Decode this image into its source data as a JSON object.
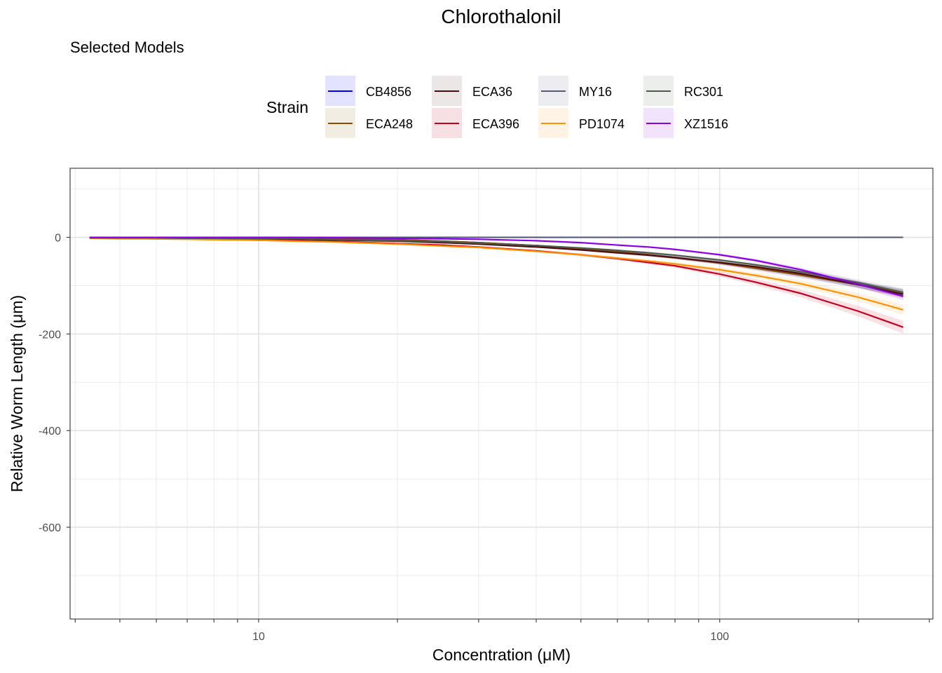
{
  "chart_data": {
    "type": "line",
    "title": "Chlorothalonil",
    "subtitle": "Selected Models",
    "xlabel": "Concentration (μM)",
    "ylabel": "Relative Worm Length (μm)",
    "x_scale": "log10",
    "xlim": [
      3.9,
      290
    ],
    "ylim": [
      -790,
      143
    ],
    "x_ticks": [
      {
        "value": 10,
        "label": "10"
      },
      {
        "value": 100,
        "label": "100"
      }
    ],
    "y_ticks": [
      {
        "value": 0,
        "label": "0"
      },
      {
        "value": -200,
        "label": "-200"
      },
      {
        "value": -400,
        "label": "-400"
      },
      {
        "value": -600,
        "label": "-600"
      }
    ],
    "grid": true,
    "legend": {
      "title": "Strain",
      "position": "top"
    },
    "x": [
      4.3,
      5,
      6,
      7,
      8,
      10,
      12,
      15,
      20,
      25,
      30,
      40,
      50,
      60,
      70,
      80,
      100,
      120,
      150,
      200,
      250
    ],
    "series": [
      {
        "name": "CB4856",
        "color": "#0000ee",
        "ribbon": "#e3e3ff",
        "values": [
          0,
          0,
          0,
          0,
          -1,
          -1,
          -2,
          -3,
          -5,
          -8,
          -11,
          -17,
          -24,
          -30,
          -36,
          -42,
          -53,
          -64,
          -78,
          -98,
          -115
        ]
      },
      {
        "name": "ECA248",
        "color": "#8b4c00",
        "ribbon": "#f2ede3",
        "values": [
          0,
          0,
          0,
          0,
          -1,
          -1,
          -2,
          -3,
          -5,
          -8,
          -11,
          -17,
          -24,
          -30,
          -36,
          -42,
          -53,
          -64,
          -78,
          -98,
          -116
        ]
      },
      {
        "name": "ECA36",
        "color": "#4d0d10",
        "ribbon": "#ede6e6",
        "values": [
          -1,
          -1,
          -1,
          -2,
          -2,
          -3,
          -4,
          -6,
          -8,
          -11,
          -14,
          -20,
          -26,
          -32,
          -37,
          -42,
          -52,
          -61,
          -75,
          -98,
          -118
        ]
      },
      {
        "name": "ECA396",
        "color": "#c4001d",
        "ribbon": "#f7e0e4",
        "values": [
          -2,
          -2,
          -3,
          -3,
          -4,
          -6,
          -7,
          -9,
          -13,
          -16,
          -20,
          -28,
          -36,
          -44,
          -52,
          -59,
          -76,
          -93,
          -116,
          -153,
          -186
        ]
      },
      {
        "name": "MY16",
        "color": "#565a7a",
        "ribbon": "#ededf1",
        "values": [
          0,
          0,
          0,
          0,
          0,
          0,
          0,
          0,
          0,
          0,
          0,
          0,
          0,
          0,
          0,
          0,
          0,
          0,
          0,
          0,
          0
        ]
      },
      {
        "name": "PD1074",
        "color": "#ff9100",
        "ribbon": "#fff3e6",
        "values": [
          -2,
          -3,
          -3,
          -4,
          -5,
          -6,
          -8,
          -10,
          -14,
          -18,
          -21,
          -29,
          -36,
          -43,
          -49,
          -55,
          -67,
          -79,
          -96,
          -124,
          -150
        ]
      },
      {
        "name": "RC301",
        "color": "#4b5a4b",
        "ribbon": "#ebeeeb",
        "values": [
          -1,
          -1,
          -1,
          -2,
          -2,
          -3,
          -3,
          -5,
          -7,
          -9,
          -12,
          -17,
          -22,
          -27,
          -32,
          -37,
          -47,
          -57,
          -71,
          -94,
          -114
        ]
      },
      {
        "name": "XZ1516",
        "color": "#8c00e3",
        "ribbon": "#f1e3fc",
        "values": [
          0,
          0,
          0,
          0,
          0,
          0,
          0,
          -1,
          -2,
          -3,
          -4,
          -7,
          -11,
          -16,
          -20,
          -25,
          -36,
          -48,
          -67,
          -97,
          -122
        ]
      }
    ]
  }
}
